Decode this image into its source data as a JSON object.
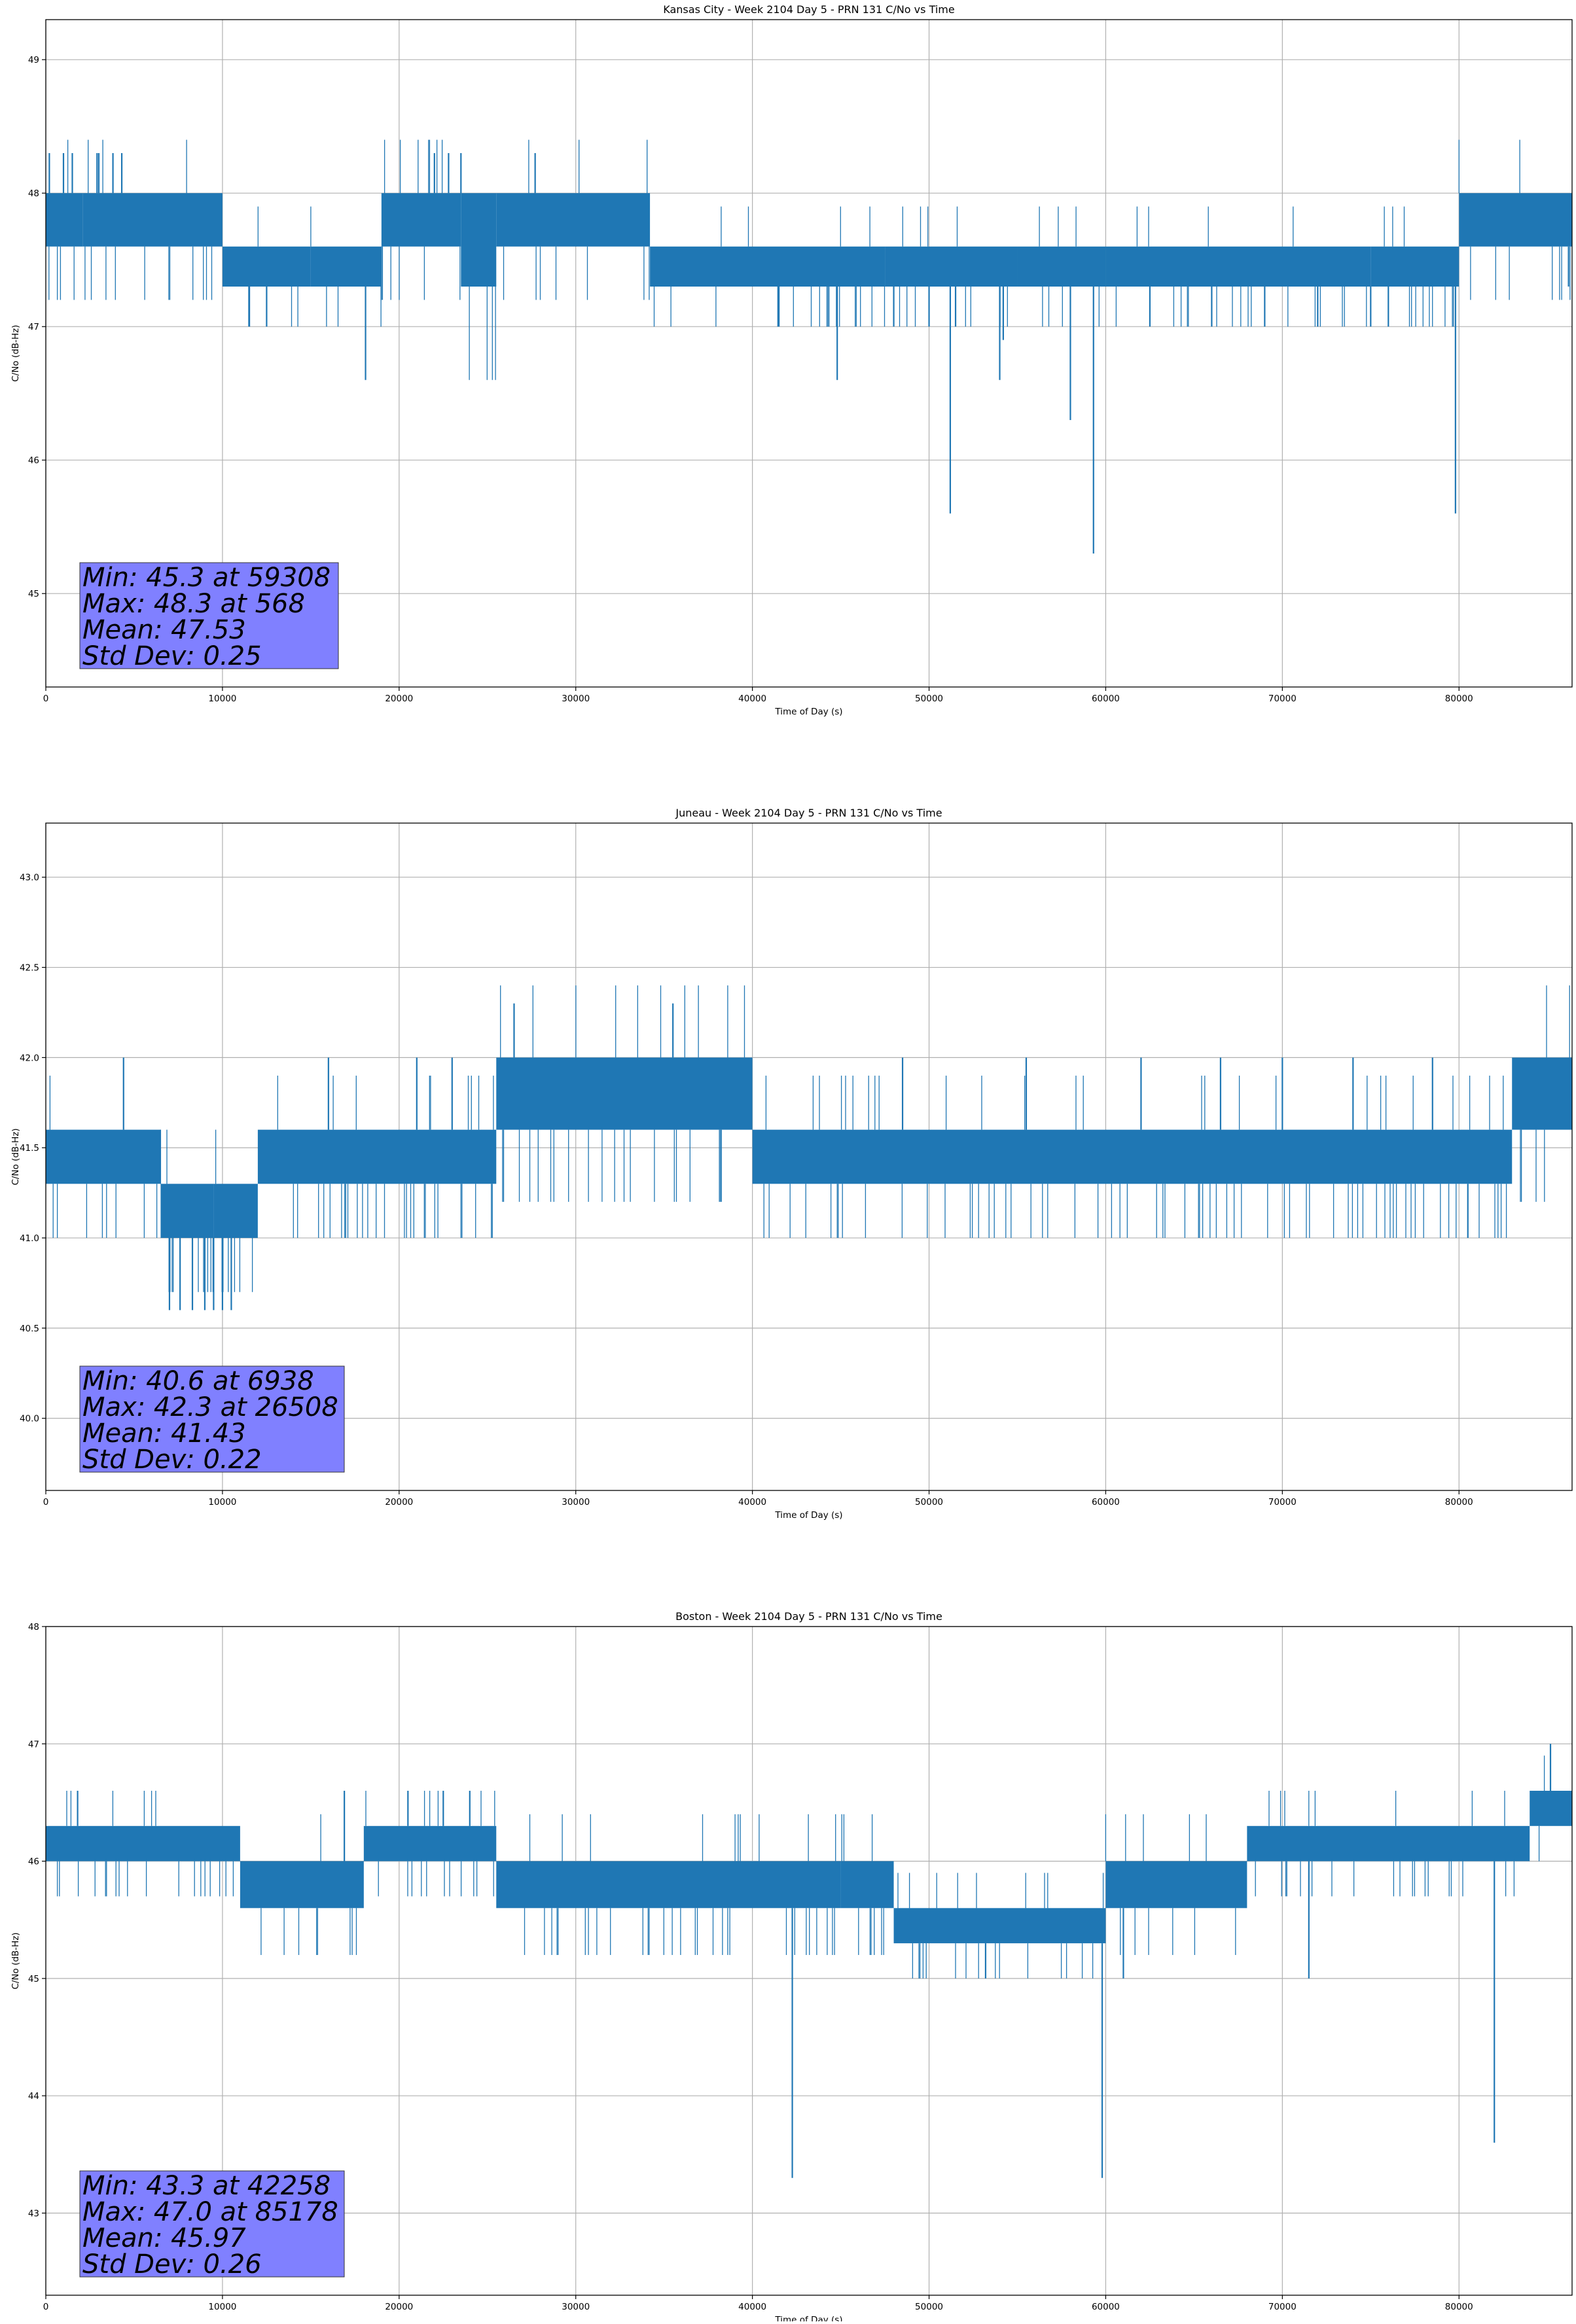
{
  "page": {
    "background": "#ffffff"
  },
  "style": {
    "line_color": "#1f77b4",
    "grid_color": "#b0b0b0",
    "stats_box_color": "#8080ff"
  },
  "chart_data": [
    {
      "type": "line",
      "title": "Kansas City - Week 2104 Day 5 - PRN 131 C/No vs Time",
      "xlabel": "Time of Day (s)",
      "ylabel": "C/No (dB-Hz)",
      "xlim": [
        0,
        86400
      ],
      "ylim": [
        44.3,
        49.3
      ],
      "xticks": [
        0,
        10000,
        20000,
        30000,
        40000,
        50000,
        60000,
        70000,
        80000
      ],
      "xtick_labels": [
        "0",
        "10000",
        "20000",
        "30000",
        "40000",
        "50000",
        "60000",
        "70000",
        "80000"
      ],
      "yticks": [
        45,
        46,
        47,
        48,
        49
      ],
      "ytick_labels": [
        "45",
        "46",
        "47",
        "48",
        "49"
      ],
      "grid": true,
      "series": [
        {
          "bands": [
            [
              0,
              2100,
              47.6,
              48.0
            ],
            [
              2100,
              10000,
              47.6,
              48.0
            ],
            [
              10000,
              15000,
              47.3,
              47.6
            ],
            [
              15000,
              19000,
              47.3,
              47.6
            ],
            [
              19000,
              23500,
              47.6,
              48.0
            ],
            [
              23500,
              25500,
              47.3,
              48.0
            ],
            [
              25500,
              34200,
              47.6,
              48.0
            ],
            [
              34200,
              47500,
              47.3,
              47.6
            ],
            [
              47500,
              55000,
              47.3,
              47.6
            ],
            [
              55000,
              60000,
              47.3,
              47.6
            ],
            [
              60000,
              75000,
              47.3,
              47.6
            ],
            [
              75000,
              80000,
              47.3,
              47.6
            ],
            [
              80000,
              86400,
              47.6,
              48.0
            ]
          ],
          "spikes": [
            [
              200,
              48.3
            ],
            [
              1000,
              48.3
            ],
            [
              1500,
              48.3
            ],
            [
              2900,
              48.3
            ],
            [
              3000,
              48.3
            ],
            [
              3800,
              48.3
            ],
            [
              4300,
              48.3
            ],
            [
              22000,
              48.3
            ],
            [
              22800,
              48.3
            ],
            [
              23500,
              48.3
            ],
            [
              27700,
              48.3
            ],
            [
              11500,
              47.0
            ],
            [
              12500,
              47.0
            ],
            [
              18100,
              46.6
            ],
            [
              41500,
              47.0
            ],
            [
              44800,
              46.6
            ],
            [
              48000,
              47.0
            ],
            [
              50000,
              47.0
            ],
            [
              51200,
              45.6
            ],
            [
              51500,
              47.0
            ],
            [
              54000,
              46.6
            ],
            [
              54200,
              46.9
            ],
            [
              58000,
              46.3
            ],
            [
              59308,
              45.3
            ],
            [
              62500,
              47.0
            ],
            [
              66000,
              47.0
            ],
            [
              69000,
              47.0
            ],
            [
              72000,
              47.0
            ],
            [
              75000,
              47.0
            ],
            [
              76000,
              47.0
            ],
            [
              79800,
              45.6
            ],
            [
              86200,
              47.3
            ]
          ]
        }
      ],
      "stats": [
        "Min: 45.3 at 59308",
        "Max: 48.3 at 568",
        "Mean: 47.53",
        "Std Dev: 0.25"
      ]
    },
    {
      "type": "line",
      "title": "Juneau - Week 2104 Day 5 - PRN 131 C/No vs Time",
      "xlabel": "Time of Day (s)",
      "ylabel": "C/No (dB-Hz)",
      "xlim": [
        0,
        86400
      ],
      "ylim": [
        39.6,
        43.3
      ],
      "xticks": [
        0,
        10000,
        20000,
        30000,
        40000,
        50000,
        60000,
        70000,
        80000
      ],
      "xtick_labels": [
        "0",
        "10000",
        "20000",
        "30000",
        "40000",
        "50000",
        "60000",
        "70000",
        "80000"
      ],
      "yticks": [
        40.0,
        40.5,
        41.0,
        41.5,
        42.0,
        42.5,
        43.0
      ],
      "ytick_labels": [
        "40.0",
        "40.5",
        "41.0",
        "41.5",
        "42.0",
        "42.5",
        "43.0"
      ],
      "grid": true,
      "series": [
        {
          "bands": [
            [
              0,
              6500,
              41.3,
              41.6
            ],
            [
              6500,
              9500,
              41.0,
              41.3
            ],
            [
              9500,
              12000,
              41.0,
              41.3
            ],
            [
              12000,
              25500,
              41.3,
              41.6
            ],
            [
              25500,
              40000,
              41.6,
              42.0
            ],
            [
              40000,
              83000,
              41.3,
              41.6
            ],
            [
              83000,
              86400,
              41.6,
              42.0
            ]
          ],
          "spikes": [
            [
              4400,
              42.0
            ],
            [
              7000,
              40.6
            ],
            [
              7600,
              40.6
            ],
            [
              8300,
              40.6
            ],
            [
              9000,
              40.6
            ],
            [
              9500,
              40.6
            ],
            [
              10000,
              40.6
            ],
            [
              10500,
              40.6
            ],
            [
              16000,
              42.0
            ],
            [
              21000,
              42.0
            ],
            [
              23000,
              42.0
            ],
            [
              26508,
              42.3
            ],
            [
              35500,
              42.3
            ],
            [
              48500,
              42.0
            ],
            [
              55500,
              42.0
            ],
            [
              62000,
              42.0
            ],
            [
              66500,
              42.0
            ],
            [
              70000,
              42.0
            ],
            [
              74000,
              42.0
            ],
            [
              78500,
              42.0
            ],
            [
              80500,
              41.0
            ]
          ]
        }
      ],
      "stats": [
        "Min: 40.6 at 6938",
        "Max: 42.3 at 26508",
        "Mean: 41.43",
        "Std Dev: 0.22"
      ]
    },
    {
      "type": "line",
      "title": "Boston - Week 2104 Day 5 - PRN 131 C/No vs Time",
      "xlabel": "Time of Day (s)",
      "ylabel": "C/No (dB-Hz)",
      "xlim": [
        0,
        86400
      ],
      "ylim": [
        42.3,
        48.0
      ],
      "xticks": [
        0,
        10000,
        20000,
        30000,
        40000,
        50000,
        60000,
        70000,
        80000
      ],
      "xtick_labels": [
        "0",
        "10000",
        "20000",
        "30000",
        "40000",
        "50000",
        "60000",
        "70000",
        "80000"
      ],
      "yticks": [
        43,
        44,
        45,
        46,
        47,
        48
      ],
      "ytick_labels": [
        "43",
        "44",
        "45",
        "46",
        "47",
        "48"
      ],
      "grid": true,
      "series": [
        {
          "bands": [
            [
              0,
              11000,
              46.0,
              46.3
            ],
            [
              11000,
              18000,
              45.6,
              46.0
            ],
            [
              18000,
              25500,
              46.0,
              46.3
            ],
            [
              25500,
              45000,
              45.6,
              46.0
            ],
            [
              45000,
              48000,
              45.6,
              46.0
            ],
            [
              48000,
              60000,
              45.3,
              45.6
            ],
            [
              60000,
              68000,
              45.6,
              46.0
            ],
            [
              68000,
              84000,
              46.0,
              46.3
            ],
            [
              84000,
              86400,
              46.3,
              46.6
            ]
          ],
          "spikes": [
            [
              1800,
              46.6
            ],
            [
              16900,
              46.6
            ],
            [
              20500,
              46.6
            ],
            [
              22500,
              46.6
            ],
            [
              24000,
              46.6
            ],
            [
              42258,
              43.3
            ],
            [
              53200,
              45.0
            ],
            [
              59800,
              43.3
            ],
            [
              61000,
              45.0
            ],
            [
              71500,
              45.0
            ],
            [
              82000,
              43.6
            ],
            [
              85178,
              47.0
            ]
          ]
        }
      ],
      "stats": [
        "Min: 43.3 at 42258",
        "Max: 47.0 at 85178",
        "Mean: 45.97",
        "Std Dev: 0.26"
      ]
    }
  ]
}
